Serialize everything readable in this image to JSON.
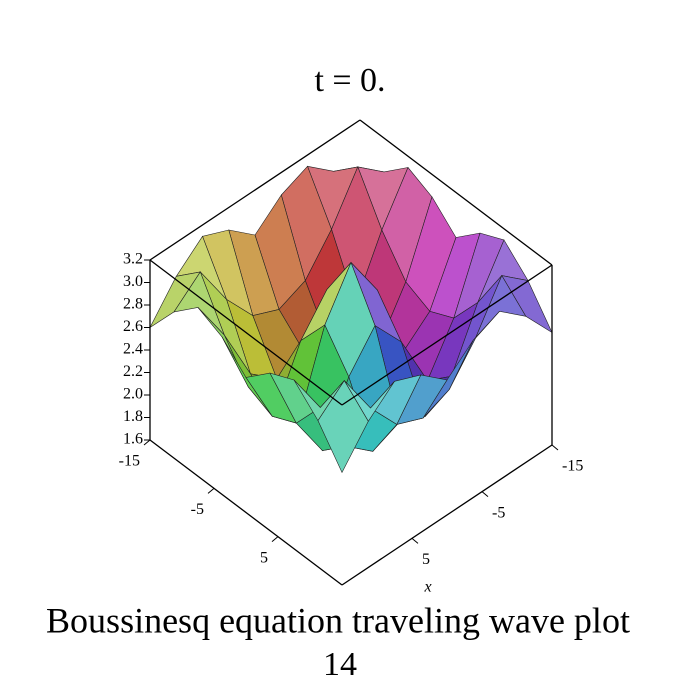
{
  "chart_data": {
    "type": "surface3d",
    "title": "t = 0.",
    "xlabel": "x",
    "caption": "Boussinesq equation  traveling wave plot",
    "figure_number": "14",
    "xlim": [
      -15,
      15
    ],
    "ylim": [
      -15,
      15
    ],
    "zlim": [
      1.6,
      3.2
    ],
    "xticks": [
      -15,
      -5,
      5
    ],
    "yticks": [
      -15,
      -5,
      5
    ],
    "zticks": [
      1.6,
      1.8,
      {
        "value": 2,
        "label": "2.0"
      },
      2.2,
      2.4,
      2.6,
      2.8,
      {
        "value": 3,
        "label": "3.0"
      },
      3.2
    ],
    "z": [
      [
        2.6,
        2.9,
        3.1,
        3.0,
        2.8,
        3.0,
        3.1,
        2.9,
        2.6
      ],
      [
        2.9,
        3.1,
        2.7,
        2.4,
        2.3,
        2.4,
        2.7,
        3.1,
        2.9
      ],
      [
        3.1,
        2.7,
        2.2,
        2.0,
        2.1,
        2.0,
        2.2,
        2.7,
        3.1
      ],
      [
        3.0,
        2.4,
        2.0,
        2.5,
        2.8,
        2.5,
        2.0,
        2.4,
        3.0
      ],
      [
        2.8,
        2.3,
        2.1,
        2.8,
        3.2,
        2.8,
        2.1,
        2.3,
        2.8
      ],
      [
        3.0,
        2.4,
        2.0,
        2.5,
        2.8,
        2.5,
        2.0,
        2.4,
        3.0
      ],
      [
        3.1,
        2.7,
        2.2,
        2.0,
        2.1,
        2.0,
        2.2,
        2.7,
        3.1
      ],
      [
        2.9,
        3.1,
        2.7,
        2.4,
        2.3,
        2.4,
        2.7,
        3.1,
        2.9
      ],
      [
        2.6,
        2.9,
        3.1,
        3.0,
        2.8,
        3.0,
        3.1,
        2.9,
        2.6
      ]
    ]
  }
}
